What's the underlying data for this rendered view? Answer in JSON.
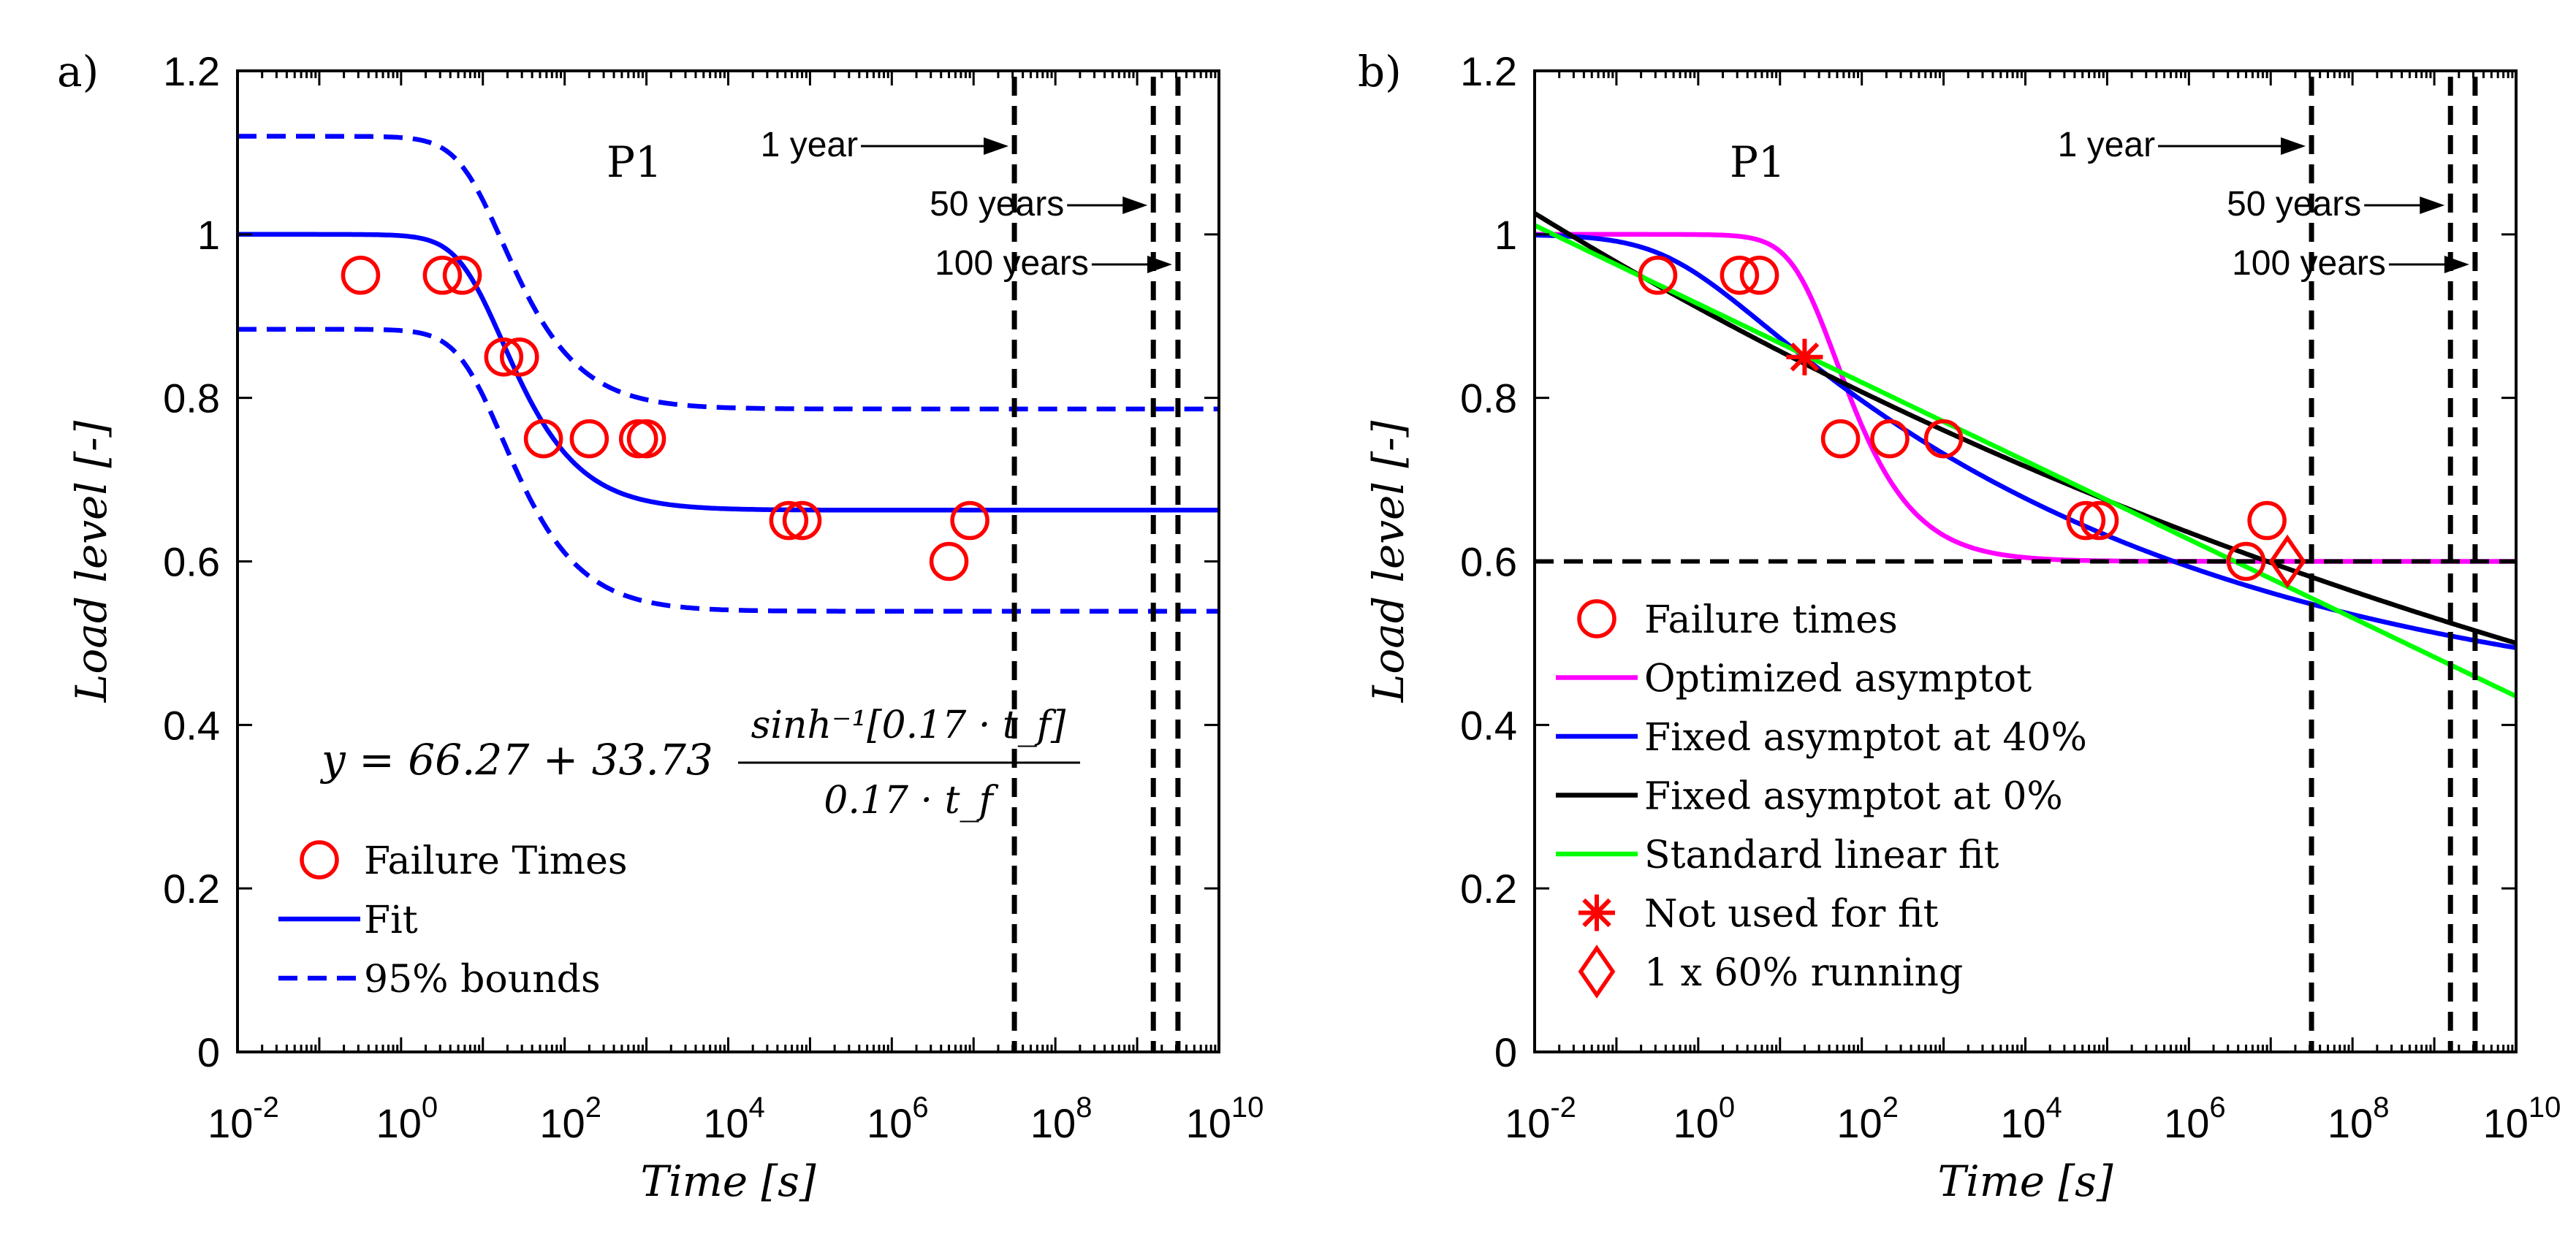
{
  "chart_data": [
    {
      "panel_label": "a)",
      "type": "scatter",
      "xscale": "log",
      "xlim": [
        0.01,
        10000000000
      ],
      "ylim": [
        0,
        1.2
      ],
      "xticks": [
        0.01,
        1,
        100,
        10000,
        1000000,
        100000000,
        10000000000
      ],
      "xtick_base": "10",
      "xtick_exponents": [
        "-2",
        "0",
        "2",
        "4",
        "6",
        "8",
        "10"
      ],
      "yticks": [
        0,
        0.2,
        0.4,
        0.6,
        0.8,
        1,
        1.2
      ],
      "ytick_labels": [
        "0",
        "0.2",
        "0.4",
        "0.6",
        "0.8",
        "1",
        "1.2"
      ],
      "xlabel": "Time [s]",
      "ylabel": "Load level [-]",
      "text_label": "P1",
      "equation": {
        "lhs": "y = 66.27 + 33.73",
        "numerator": "sinh⁻¹[0.17 · t_f]",
        "denominator": "0.17 · t_f"
      },
      "time_markers": [
        {
          "label": "1 year",
          "x": 31536000
        },
        {
          "label": "50 years",
          "x": 1576800000
        },
        {
          "label": "100 years",
          "x": 3153600000
        }
      ],
      "series": [
        {
          "name": "Failure Times",
          "kind": "marker",
          "marker": "circle",
          "color": "#ff0000",
          "x": [
            0.32,
            3.2,
            5.6,
            18,
            28,
            55,
            200,
            800,
            1000,
            55000,
            80000,
            5000000,
            9000000
          ],
          "y": [
            0.95,
            0.95,
            0.95,
            0.85,
            0.85,
            0.75,
            0.75,
            0.75,
            0.75,
            0.65,
            0.65,
            0.6,
            0.65
          ]
        },
        {
          "name": "Fit",
          "kind": "curve",
          "style": "solid",
          "color": "#0000ff",
          "model": "asinh",
          "asymptote": 0.6627,
          "amplitude": 0.3373,
          "rate": 0.17
        },
        {
          "name": "95% bounds",
          "kind": "curve",
          "style": "dashed",
          "color": "#0000ff",
          "model": "asinh",
          "asymptote": 0.7864,
          "amplitude": 0.3336,
          "rate": 0.17
        },
        {
          "name": "",
          "kind": "curve",
          "style": "dashed",
          "color": "#0000ff",
          "model": "asinh",
          "asymptote": 0.539,
          "amplitude": 0.345,
          "rate": 0.17
        }
      ],
      "legend": {
        "position": "bottom-left",
        "entries": [
          {
            "label": "Failure Times",
            "symbol": "circle",
            "color": "#ff0000"
          },
          {
            "label": "Fit",
            "symbol": "line",
            "color": "#0000ff"
          },
          {
            "label": "95% bounds",
            "symbol": "dashed",
            "color": "#0000ff"
          }
        ]
      }
    },
    {
      "panel_label": "b)",
      "type": "scatter",
      "xscale": "log",
      "xlim": [
        0.01,
        10000000000
      ],
      "ylim": [
        0,
        1.2
      ],
      "xticks": [
        0.01,
        1,
        100,
        10000,
        1000000,
        100000000,
        10000000000
      ],
      "xtick_base": "10",
      "xtick_exponents": [
        "-2",
        "0",
        "2",
        "4",
        "6",
        "8",
        "10"
      ],
      "yticks": [
        0,
        0.2,
        0.4,
        0.6,
        0.8,
        1,
        1.2
      ],
      "ytick_labels": [
        "0",
        "0.2",
        "0.4",
        "0.6",
        "0.8",
        "1",
        "1.2"
      ],
      "xlabel": "Time [s]",
      "ylabel": "Load level [-]",
      "text_label": "P1",
      "reference_line_y": 0.6,
      "time_markers": [
        {
          "label": "1 year",
          "x": 31536000
        },
        {
          "label": "50 years",
          "x": 1576800000
        },
        {
          "label": "100 years",
          "x": 3153600000
        }
      ],
      "series": [
        {
          "name": "Failure times",
          "kind": "marker",
          "marker": "circle",
          "color": "#ff0000",
          "x": [
            0.32,
            3.2,
            5.6,
            55,
            220,
            1000,
            55000,
            80000,
            5000000,
            9000000
          ],
          "y": [
            0.95,
            0.95,
            0.95,
            0.75,
            0.75,
            0.75,
            0.65,
            0.65,
            0.6,
            0.65
          ]
        },
        {
          "name": "Optimized asymptot",
          "kind": "curve",
          "style": "solid",
          "color": "#ff00ff",
          "model": "asinh",
          "asymptote": 0.6,
          "amplitude": 0.4,
          "rate": 0.06
        },
        {
          "name": "Fixed asymptot at 40%",
          "kind": "curve",
          "style": "solid",
          "color": "#0000ff",
          "model": "power",
          "asymptote": 0.4,
          "amplitude": 0.6,
          "x0": 0.5,
          "exponent": 0.078
        },
        {
          "name": "Fixed asymptot at 0%",
          "kind": "curve",
          "style": "solid",
          "color": "#000000",
          "model": "powerlaw",
          "coefficient": 0.91,
          "exponent": 0.026
        },
        {
          "name": "Standard linear fit",
          "kind": "curve",
          "style": "solid",
          "color": "#00ff00",
          "model": "linear_log",
          "intercept": 0.915,
          "slope": -0.048
        },
        {
          "name": "Not used for fit",
          "kind": "marker",
          "marker": "asterisk",
          "color": "#ff0000",
          "x": [
            20
          ],
          "y": [
            0.85
          ]
        },
        {
          "name": "1 x 60% running",
          "kind": "marker",
          "marker": "diamond",
          "color": "#ff0000",
          "x": [
            16000000
          ],
          "y": [
            0.6
          ]
        }
      ],
      "legend": {
        "position": "bottom-left",
        "entries": [
          {
            "label": "Failure times",
            "symbol": "circle",
            "color": "#ff0000"
          },
          {
            "label": "Optimized asymptot",
            "symbol": "line",
            "color": "#ff00ff"
          },
          {
            "label": "Fixed asymptot at 40%",
            "symbol": "line",
            "color": "#0000ff"
          },
          {
            "label": "Fixed asymptot at 0%",
            "symbol": "line",
            "color": "#000000"
          },
          {
            "label": "Standard linear fit",
            "symbol": "line",
            "color": "#00ff00"
          },
          {
            "label": "Not used for fit",
            "symbol": "asterisk",
            "color": "#ff0000"
          },
          {
            "label": "1 x 60% running",
            "symbol": "diamond",
            "color": "#ff0000"
          }
        ]
      }
    }
  ]
}
